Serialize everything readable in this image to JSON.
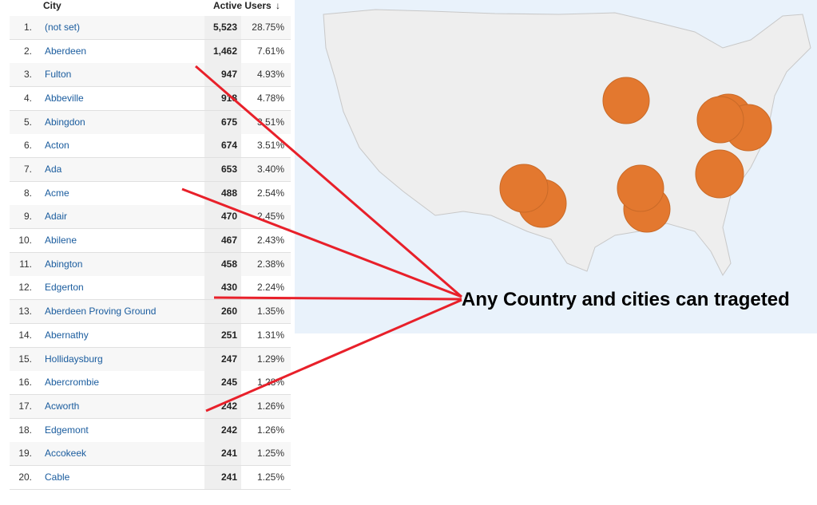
{
  "table": {
    "headers": [
      "City",
      "Active Users"
    ],
    "rows": [
      [
        "1.",
        "(not set)",
        "5,523",
        "28.75%"
      ],
      [
        "2.",
        "Aberdeen",
        "1,462",
        "7.61%"
      ],
      [
        "3.",
        "Fulton",
        "947",
        "4.93%"
      ],
      [
        "4.",
        "Abbeville",
        "918",
        "4.78%"
      ],
      [
        "5.",
        "Abingdon",
        "675",
        "3.51%"
      ],
      [
        "6.",
        "Acton",
        "674",
        "3.51%"
      ],
      [
        "7.",
        "Ada",
        "653",
        "3.40%"
      ],
      [
        "8.",
        "Acme",
        "488",
        "2.54%"
      ],
      [
        "9.",
        "Adair",
        "470",
        "2.45%"
      ],
      [
        "10.",
        "Abilene",
        "467",
        "2.43%"
      ],
      [
        "11.",
        "Abington",
        "458",
        "2.38%"
      ],
      [
        "12.",
        "Edgerton",
        "430",
        "2.24%"
      ],
      [
        "13.",
        "Aberdeen Proving Ground",
        "260",
        "1.35%"
      ],
      [
        "14.",
        "Abernathy",
        "251",
        "1.31%"
      ],
      [
        "15.",
        "Hollidaysburg",
        "247",
        "1.29%"
      ],
      [
        "16.",
        "Abercrombie",
        "245",
        "1.28%"
      ],
      [
        "17.",
        "Acworth",
        "242",
        "1.26%"
      ],
      [
        "18.",
        "Edgemont",
        "242",
        "1.26%"
      ],
      [
        "19.",
        "Accokeek",
        "241",
        "1.25%"
      ],
      [
        "20.",
        "Cable",
        "241",
        "1.25%"
      ]
    ]
  },
  "annotation": "Any Country and cities can trageted"
}
